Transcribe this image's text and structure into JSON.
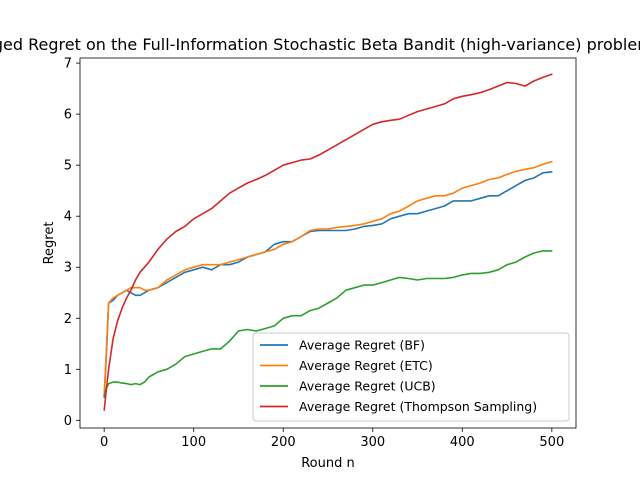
{
  "chart_data": {
    "type": "line",
    "title": "Averaged Regret on the Full-Information Stochastic Beta Bandit (high-variance) problem",
    "xlabel": "Round n",
    "ylabel": "Regret",
    "xlim": [
      -27,
      527
    ],
    "ylim": [
      -0.15,
      7.1
    ],
    "xticks": [
      0,
      100,
      200,
      300,
      400,
      500
    ],
    "yticks": [
      0,
      1,
      2,
      3,
      4,
      5,
      6,
      7
    ],
    "grid": false,
    "legend_position": "lower-right",
    "series": [
      {
        "name": "Average Regret (BF)",
        "color": "#1f77b4",
        "x": [
          0,
          3,
          5,
          10,
          15,
          20,
          25,
          30,
          35,
          40,
          45,
          50,
          60,
          70,
          80,
          90,
          100,
          110,
          120,
          130,
          140,
          150,
          160,
          170,
          180,
          190,
          200,
          210,
          220,
          230,
          240,
          250,
          260,
          270,
          280,
          290,
          300,
          310,
          320,
          330,
          340,
          350,
          360,
          370,
          380,
          390,
          400,
          410,
          420,
          430,
          440,
          450,
          460,
          470,
          480,
          490,
          500
        ],
        "y": [
          0.45,
          1.5,
          2.3,
          2.35,
          2.45,
          2.5,
          2.55,
          2.5,
          2.45,
          2.45,
          2.5,
          2.55,
          2.6,
          2.7,
          2.8,
          2.9,
          2.95,
          3.0,
          2.95,
          3.05,
          3.05,
          3.1,
          3.2,
          3.25,
          3.3,
          3.45,
          3.5,
          3.5,
          3.6,
          3.7,
          3.72,
          3.72,
          3.72,
          3.72,
          3.75,
          3.8,
          3.82,
          3.85,
          3.95,
          4.0,
          4.05,
          4.05,
          4.1,
          4.15,
          4.2,
          4.3,
          4.3,
          4.3,
          4.35,
          4.4,
          4.4,
          4.5,
          4.6,
          4.7,
          4.75,
          4.85,
          4.87
        ]
      },
      {
        "name": "Average Regret (ETC)",
        "color": "#ff7f0e",
        "x": [
          0,
          3,
          5,
          10,
          15,
          20,
          25,
          30,
          35,
          40,
          45,
          50,
          60,
          70,
          80,
          90,
          100,
          110,
          120,
          130,
          140,
          150,
          160,
          170,
          180,
          190,
          200,
          210,
          220,
          230,
          240,
          250,
          260,
          270,
          280,
          290,
          300,
          310,
          320,
          330,
          340,
          350,
          360,
          370,
          380,
          390,
          400,
          410,
          420,
          430,
          440,
          450,
          460,
          470,
          480,
          490,
          500
        ],
        "y": [
          0.5,
          1.6,
          2.3,
          2.4,
          2.45,
          2.5,
          2.55,
          2.6,
          2.6,
          2.6,
          2.55,
          2.55,
          2.6,
          2.75,
          2.85,
          2.95,
          3.0,
          3.05,
          3.05,
          3.05,
          3.1,
          3.15,
          3.2,
          3.25,
          3.3,
          3.35,
          3.45,
          3.5,
          3.6,
          3.72,
          3.75,
          3.75,
          3.78,
          3.8,
          3.82,
          3.85,
          3.9,
          3.95,
          4.05,
          4.1,
          4.2,
          4.3,
          4.35,
          4.4,
          4.4,
          4.45,
          4.55,
          4.6,
          4.65,
          4.72,
          4.75,
          4.82,
          4.88,
          4.92,
          4.95,
          5.02,
          5.07
        ]
      },
      {
        "name": "Average Regret (UCB)",
        "color": "#2ca02c",
        "x": [
          0,
          3,
          5,
          10,
          15,
          20,
          25,
          30,
          35,
          40,
          45,
          50,
          60,
          70,
          80,
          90,
          100,
          110,
          120,
          130,
          140,
          150,
          160,
          170,
          180,
          190,
          200,
          210,
          220,
          230,
          240,
          250,
          260,
          270,
          280,
          290,
          300,
          310,
          320,
          330,
          340,
          350,
          360,
          370,
          380,
          390,
          400,
          410,
          420,
          430,
          440,
          450,
          460,
          470,
          480,
          490,
          500
        ],
        "y": [
          0.5,
          0.65,
          0.72,
          0.75,
          0.75,
          0.73,
          0.72,
          0.7,
          0.72,
          0.7,
          0.75,
          0.85,
          0.95,
          1.0,
          1.1,
          1.25,
          1.3,
          1.35,
          1.4,
          1.4,
          1.55,
          1.75,
          1.78,
          1.75,
          1.8,
          1.85,
          2.0,
          2.05,
          2.05,
          2.15,
          2.2,
          2.3,
          2.4,
          2.55,
          2.6,
          2.65,
          2.65,
          2.7,
          2.75,
          2.8,
          2.78,
          2.75,
          2.78,
          2.78,
          2.78,
          2.8,
          2.85,
          2.88,
          2.88,
          2.9,
          2.95,
          3.05,
          3.1,
          3.2,
          3.28,
          3.32,
          3.32
        ]
      },
      {
        "name": "Average Regret (Thompson Sampling)",
        "color": "#d62728",
        "x": [
          0,
          3,
          5,
          10,
          15,
          20,
          25,
          30,
          35,
          40,
          45,
          50,
          60,
          70,
          80,
          90,
          100,
          110,
          120,
          130,
          140,
          150,
          160,
          170,
          180,
          190,
          200,
          210,
          220,
          230,
          240,
          250,
          260,
          270,
          280,
          290,
          300,
          310,
          320,
          330,
          340,
          350,
          360,
          370,
          380,
          390,
          400,
          410,
          420,
          430,
          440,
          450,
          460,
          470,
          480,
          490,
          500
        ],
        "y": [
          0.2,
          0.7,
          1.0,
          1.6,
          1.95,
          2.2,
          2.4,
          2.55,
          2.75,
          2.9,
          3.0,
          3.1,
          3.35,
          3.55,
          3.7,
          3.8,
          3.95,
          4.05,
          4.15,
          4.3,
          4.45,
          4.55,
          4.65,
          4.72,
          4.8,
          4.9,
          5.0,
          5.05,
          5.1,
          5.12,
          5.2,
          5.3,
          5.4,
          5.5,
          5.6,
          5.7,
          5.8,
          5.85,
          5.88,
          5.9,
          5.98,
          6.05,
          6.1,
          6.15,
          6.2,
          6.3,
          6.35,
          6.38,
          6.42,
          6.48,
          6.55,
          6.62,
          6.6,
          6.55,
          6.65,
          6.72,
          6.78
        ]
      }
    ]
  }
}
